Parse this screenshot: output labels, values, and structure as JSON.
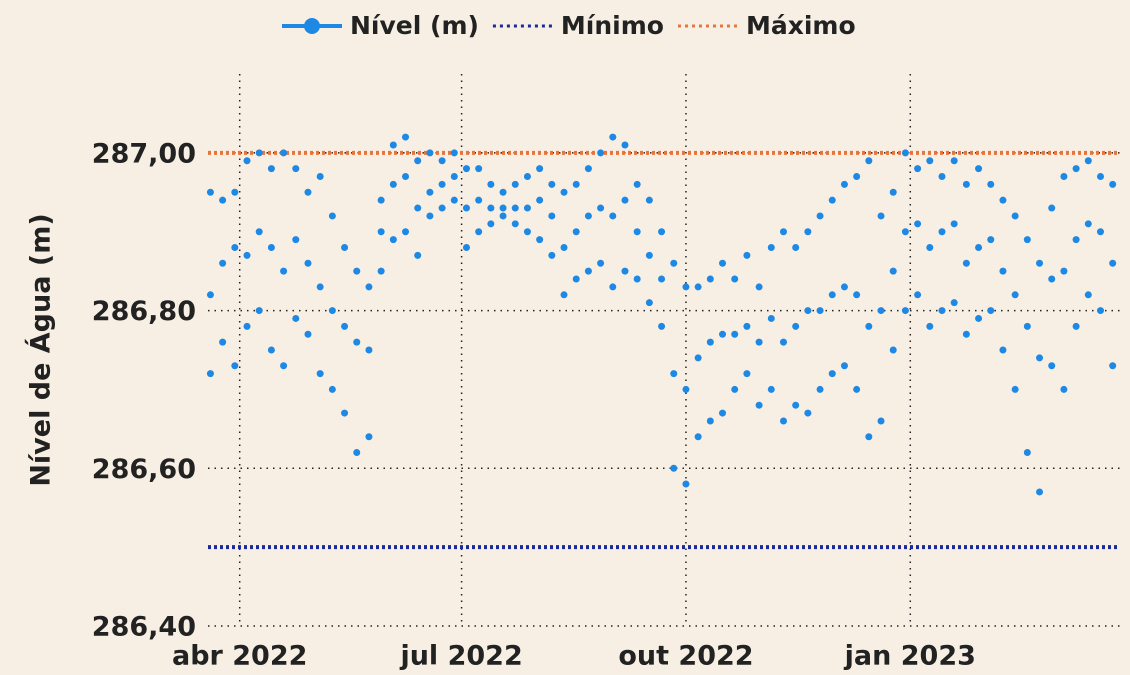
{
  "chart_data": {
    "type": "scatter",
    "y_label": "Nível de Água (m)",
    "series": [
      {
        "name": "Nível (m)",
        "color": "#1e88e5",
        "x": [
          -12,
          -7,
          -2,
          3,
          8,
          13,
          18,
          23,
          28,
          33,
          38,
          43,
          48,
          53,
          58,
          63,
          68,
          73,
          78,
          83,
          88,
          93,
          98,
          103,
          108,
          113,
          118,
          123,
          128,
          133,
          138,
          143,
          148,
          153,
          158,
          163,
          168,
          173,
          178,
          183,
          188,
          193,
          198,
          203,
          208,
          213,
          218,
          223,
          228,
          233,
          238,
          243,
          248,
          253,
          258,
          263,
          268,
          273,
          278,
          283,
          288,
          293,
          298,
          303,
          308,
          313,
          318,
          323,
          328,
          333,
          338,
          343,
          348,
          353,
          358
        ],
        "values": [
          [
            286.72,
            286.82,
            286.95
          ],
          [
            286.76,
            286.86,
            286.94
          ],
          [
            286.73,
            286.88,
            286.95
          ],
          [
            286.78,
            286.87,
            286.99
          ],
          [
            286.8,
            286.9,
            287.0
          ],
          [
            286.75,
            286.88,
            286.98
          ],
          [
            286.73,
            286.85,
            287.0
          ],
          [
            286.79,
            286.89,
            286.98
          ],
          [
            286.77,
            286.86,
            286.95
          ],
          [
            286.72,
            286.83,
            286.97
          ],
          [
            286.7,
            286.8,
            286.92
          ],
          [
            286.67,
            286.78,
            286.88
          ],
          [
            286.62,
            286.76,
            286.85
          ],
          [
            286.64,
            286.75,
            286.83
          ],
          [
            286.85,
            286.9,
            286.94
          ],
          [
            286.89,
            286.96,
            287.01
          ],
          [
            286.9,
            286.97,
            287.02
          ],
          [
            286.87,
            286.93,
            286.99
          ],
          [
            286.92,
            286.95,
            287.0
          ],
          [
            286.93,
            286.96,
            286.99
          ],
          [
            286.94,
            286.97,
            287.0
          ],
          [
            286.88,
            286.93,
            286.98
          ],
          [
            286.9,
            286.94,
            286.98
          ],
          [
            286.91,
            286.93,
            286.96
          ],
          [
            286.92,
            286.93,
            286.95
          ],
          [
            286.91,
            286.93,
            286.96
          ],
          [
            286.9,
            286.93,
            286.97
          ],
          [
            286.89,
            286.94,
            286.98
          ],
          [
            286.87,
            286.92,
            286.96
          ],
          [
            286.82,
            286.88,
            286.95
          ],
          [
            286.84,
            286.9,
            286.96
          ],
          [
            286.85,
            286.92,
            286.98
          ],
          [
            286.86,
            286.93,
            287.0
          ],
          [
            286.83,
            286.92,
            287.02
          ],
          [
            286.85,
            286.94,
            287.01
          ],
          [
            286.84,
            286.9,
            286.96
          ],
          [
            286.81,
            286.87,
            286.94
          ],
          [
            286.78,
            286.84,
            286.9
          ],
          [
            286.6,
            286.72,
            286.86
          ],
          [
            286.58,
            286.7,
            286.83
          ],
          [
            286.64,
            286.74,
            286.83
          ],
          [
            286.66,
            286.76,
            286.84
          ],
          [
            286.67,
            286.77,
            286.86
          ],
          [
            286.7,
            286.77,
            286.84
          ],
          [
            286.72,
            286.78,
            286.87
          ],
          [
            286.68,
            286.76,
            286.83
          ],
          [
            286.7,
            286.79,
            286.88
          ],
          [
            286.66,
            286.76,
            286.9
          ],
          [
            286.68,
            286.78,
            286.88
          ],
          [
            286.67,
            286.8,
            286.9
          ],
          [
            286.7,
            286.8,
            286.92
          ],
          [
            286.72,
            286.82,
            286.94
          ],
          [
            286.73,
            286.83,
            286.96
          ],
          [
            286.7,
            286.82,
            286.97
          ],
          [
            286.64,
            286.78,
            286.99
          ],
          [
            286.66,
            286.8,
            286.92
          ],
          [
            286.75,
            286.85,
            286.95
          ],
          [
            286.8,
            286.9,
            287.0
          ],
          [
            286.82,
            286.91,
            286.98
          ],
          [
            286.78,
            286.88,
            286.99
          ],
          [
            286.8,
            286.9,
            286.97
          ],
          [
            286.81,
            286.91,
            286.99
          ],
          [
            286.77,
            286.86,
            286.96
          ],
          [
            286.79,
            286.88,
            286.98
          ],
          [
            286.8,
            286.89,
            286.96
          ],
          [
            286.75,
            286.85,
            286.94
          ],
          [
            286.7,
            286.82,
            286.92
          ],
          [
            286.62,
            286.78,
            286.89
          ],
          [
            286.57,
            286.74,
            286.86
          ],
          [
            286.73,
            286.84,
            286.93
          ],
          [
            286.7,
            286.85,
            286.97
          ],
          [
            286.78,
            286.89,
            286.98
          ],
          [
            286.82,
            286.91,
            286.99
          ],
          [
            286.8,
            286.9,
            286.97
          ],
          [
            286.73,
            286.86,
            286.96
          ]
        ]
      }
    ],
    "reference_lines": [
      {
        "name": "Mínimo",
        "value": 286.5,
        "color": "#1a2a9a"
      },
      {
        "name": "Máximo",
        "value": 287.0,
        "color": "#e8743b"
      }
    ],
    "xlim": [
      -13,
      361
    ],
    "xticks": [
      {
        "value": 0,
        "label": "abr 2022"
      },
      {
        "value": 91,
        "label": "jul 2022"
      },
      {
        "value": 183,
        "label": "out 2022"
      },
      {
        "value": 275,
        "label": "jan 2023"
      }
    ],
    "ylim": [
      286.4,
      287.1
    ],
    "yticks": [
      {
        "value": 286.4,
        "label": "286,40"
      },
      {
        "value": 286.6,
        "label": "286,60"
      },
      {
        "value": 286.8,
        "label": "286,80"
      },
      {
        "value": 287.0,
        "label": "287,00"
      }
    ],
    "grid": true
  }
}
